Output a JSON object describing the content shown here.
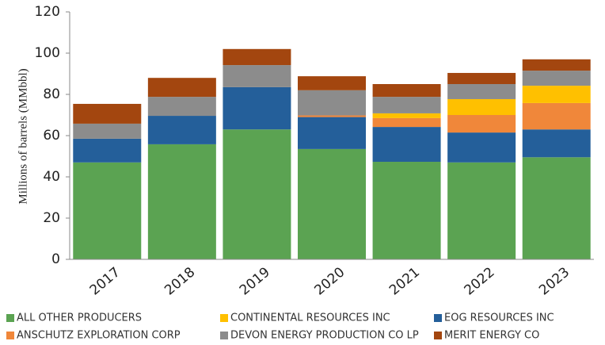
{
  "chart_data": {
    "type": "bar",
    "stacked": true,
    "y_label": "Millions of barrels (MMbbl)",
    "categories": [
      "2017",
      "2018",
      "2019",
      "2020",
      "2021",
      "2022",
      "2023"
    ],
    "series": [
      {
        "name": "ALL OTHER PRODUCERS",
        "color": "#5ba352",
        "values": [
          47,
          55.8,
          63,
          53.5,
          47.3,
          47,
          49.5
        ]
      },
      {
        "name": "EOG RESOURCES INC",
        "color": "#245f9a",
        "values": [
          11.5,
          13.8,
          20.5,
          15.5,
          16.9,
          14.5,
          13.5
        ]
      },
      {
        "name": "ANSCHUTZ EXPLORATION CORP",
        "color": "#f0873a",
        "values": [
          0,
          0,
          0,
          0.8,
          4.3,
          8.5,
          12.8
        ]
      },
      {
        "name": "CONTINENTAL RESOURCES INC",
        "color": "#ffc000",
        "values": [
          0,
          0,
          0,
          0,
          2.3,
          7.7,
          8.4
        ]
      },
      {
        "name": "DEVON ENERGY PRODUCTION CO LP",
        "color": "#8c8c8c",
        "values": [
          7.3,
          9.2,
          10.7,
          12.2,
          8,
          7.3,
          7.3
        ]
      },
      {
        "name": "MERIT ENERGY CO",
        "color": "#a3460f",
        "values": [
          9.6,
          9.2,
          7.8,
          6.8,
          6.2,
          5.4,
          5.5
        ]
      }
    ],
    "ylim": [
      0,
      120
    ],
    "yticks": [
      0,
      20,
      40,
      60,
      80,
      100,
      120
    ],
    "grid": false
  }
}
